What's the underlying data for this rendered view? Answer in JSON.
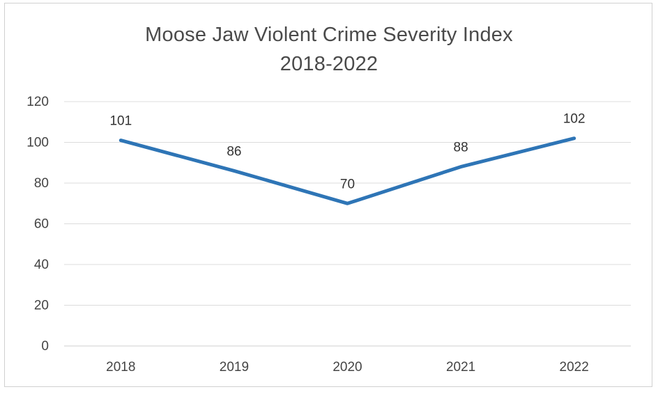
{
  "chart_data": {
    "type": "line",
    "title": "Moose Jaw Violent Crime Severity Index",
    "subtitle": "2018-2022",
    "xlabel": "",
    "ylabel": "",
    "categories": [
      "2018",
      "2019",
      "2020",
      "2021",
      "2022"
    ],
    "series": [
      {
        "name": "Violent Crime Severity Index",
        "values": [
          101,
          86,
          70,
          88,
          102
        ],
        "data_labels": [
          "101",
          "86",
          "70",
          "88",
          "102"
        ],
        "color": "#2e75b6"
      }
    ],
    "ylim": [
      0,
      120
    ],
    "yticks": [
      0,
      20,
      40,
      60,
      80,
      100,
      120
    ],
    "ytick_labels": [
      "0",
      "20",
      "40",
      "60",
      "80",
      "100",
      "120"
    ],
    "grid": true,
    "legend": "none"
  }
}
